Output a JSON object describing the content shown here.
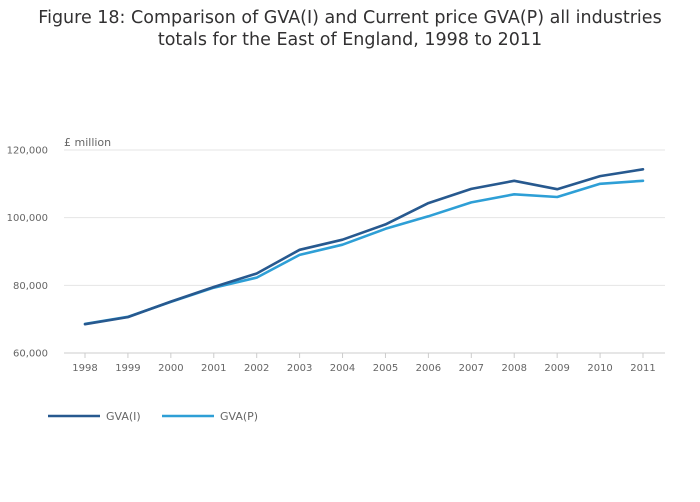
{
  "title_line1": "Figure 18: Comparison of GVA(I) and Current price GVA(P) all industries",
  "title_line2": "totals for the East of England, 1998 to 2011",
  "chart_data": {
    "type": "line",
    "title": "Figure 18: Comparison of GVA(I) and Current price GVA(P) all industries totals for the East of England, 1998 to 2011",
    "ylabel": "£ million",
    "xlabel": "",
    "x": [
      1998,
      1999,
      2000,
      2001,
      2002,
      2003,
      2004,
      2005,
      2006,
      2007,
      2008,
      2009,
      2010,
      2011
    ],
    "x_tick_labels": [
      "1998",
      "1999",
      "2000",
      "2001",
      "2002",
      "2003",
      "2004",
      "2005",
      "2006",
      "2007",
      "2008",
      "2009",
      "2010",
      "2011"
    ],
    "ylim": [
      60000,
      120000
    ],
    "y_ticks": [
      60000,
      80000,
      100000,
      120000
    ],
    "y_tick_labels": [
      "60,000",
      "80,000",
      "100,000",
      "120,000"
    ],
    "grid": "horizontal",
    "legend_position": "bottom-left",
    "series": [
      {
        "name": "GVA(I)",
        "color": "#27598f",
        "values": [
          68500,
          70600,
          75200,
          79500,
          83500,
          90500,
          93500,
          98000,
          104300,
          108500,
          110900,
          108400,
          112300,
          114300
        ]
      },
      {
        "name": "GVA(P)",
        "color": "#2e9fd6",
        "values": [
          68600,
          70700,
          75100,
          79300,
          82300,
          89000,
          92000,
          96700,
          100400,
          104500,
          106900,
          106100,
          110000,
          110900
        ]
      }
    ]
  }
}
